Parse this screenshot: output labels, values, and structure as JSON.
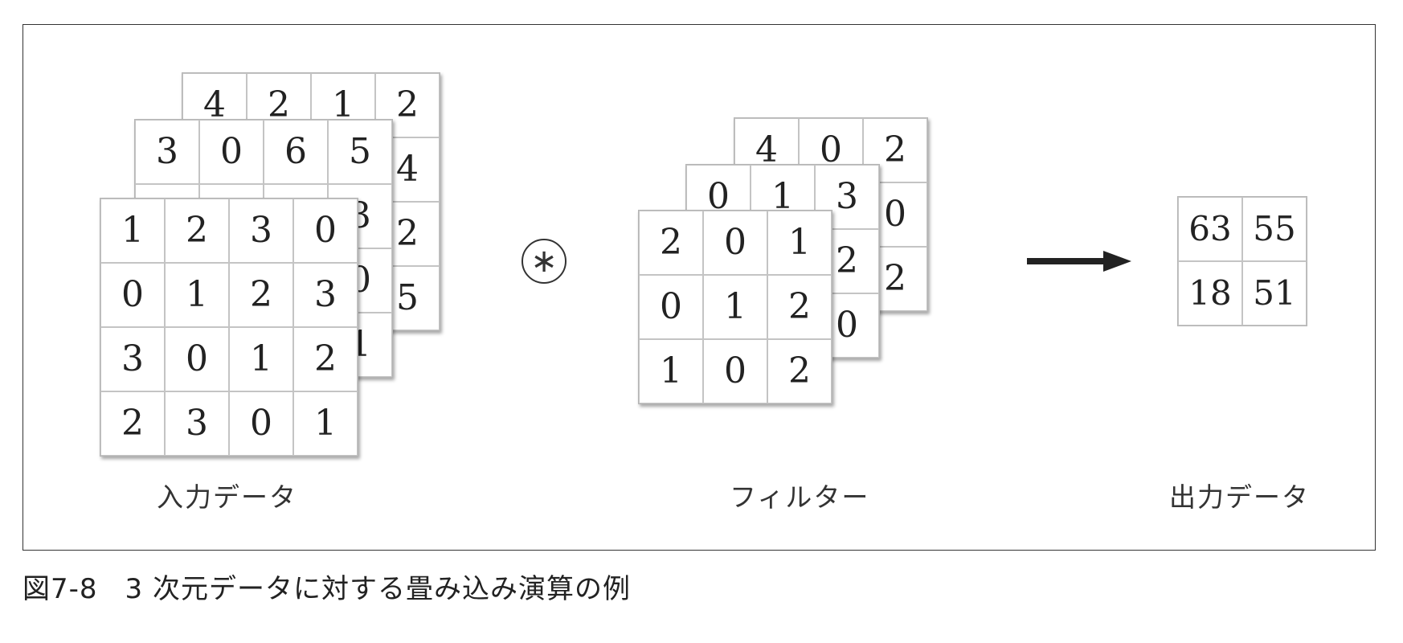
{
  "input": {
    "label": "入力データ",
    "channels": [
      [
        [
          "4",
          "2",
          "1",
          "2"
        ],
        [
          "",
          "",
          "",
          "4"
        ],
        [
          "",
          "",
          "",
          "2"
        ],
        [
          "",
          "",
          "",
          "5"
        ]
      ],
      [
        [
          "3",
          "0",
          "6",
          "5"
        ],
        [
          "",
          "",
          "",
          "3"
        ],
        [
          "",
          "",
          "",
          "0"
        ],
        [
          "",
          "",
          "",
          "1"
        ]
      ],
      [
        [
          "1",
          "2",
          "3",
          "0"
        ],
        [
          "0",
          "1",
          "2",
          "3"
        ],
        [
          "3",
          "0",
          "1",
          "2"
        ],
        [
          "2",
          "3",
          "0",
          "1"
        ]
      ]
    ]
  },
  "operator": {
    "symbol": "∗"
  },
  "filter": {
    "label": "フィルター",
    "channels": [
      [
        [
          "4",
          "0",
          "2"
        ],
        [
          "",
          "",
          "0"
        ],
        [
          "",
          "",
          "2"
        ]
      ],
      [
        [
          "0",
          "1",
          "3"
        ],
        [
          "",
          "",
          "2"
        ],
        [
          "",
          "",
          "0"
        ]
      ],
      [
        [
          "2",
          "0",
          "1"
        ],
        [
          "0",
          "1",
          "2"
        ],
        [
          "1",
          "0",
          "2"
        ]
      ]
    ]
  },
  "output": {
    "label": "出力データ",
    "values": [
      [
        "63",
        "55"
      ],
      [
        "18",
        "51"
      ]
    ]
  },
  "caption": {
    "number": "図7-8",
    "text": "3 次元データに対する畳み込み演算の例"
  }
}
